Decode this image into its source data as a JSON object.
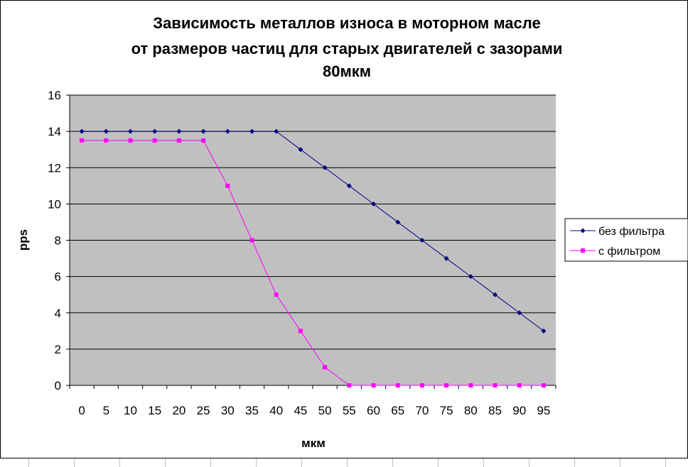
{
  "chart_data": {
    "type": "line",
    "title": [
      "Зависимость металлов износа в моторном масле",
      "от размеров частиц для старых двигателей с зазорами",
      "80мкм"
    ],
    "xlabel": "мкм",
    "ylabel": "pps",
    "categories": [
      "0",
      "5",
      "10",
      "15",
      "20",
      "25",
      "30",
      "35",
      "40",
      "45",
      "50",
      "55",
      "60",
      "65",
      "70",
      "75",
      "80",
      "85",
      "90",
      "95"
    ],
    "ylim": [
      0,
      16
    ],
    "yticks": [
      "0",
      "2",
      "4",
      "6",
      "8",
      "10",
      "12",
      "14",
      "16"
    ],
    "grid": true,
    "legend_position": "right",
    "series": [
      {
        "name": "без фильтра",
        "color": "#000080",
        "marker": "diamond",
        "values": [
          14,
          14,
          14,
          14,
          14,
          14,
          14,
          14,
          14,
          13,
          12,
          11,
          10,
          9,
          8,
          7,
          6,
          5,
          4,
          3
        ]
      },
      {
        "name": "с фильтром",
        "color": "#FF00FF",
        "marker": "square",
        "values": [
          13.5,
          13.5,
          13.5,
          13.5,
          13.5,
          13.5,
          11,
          8,
          5,
          3,
          1,
          0,
          0,
          0,
          0,
          0,
          0,
          0,
          0,
          0
        ]
      }
    ],
    "plot_background": "#C0C0C0"
  }
}
